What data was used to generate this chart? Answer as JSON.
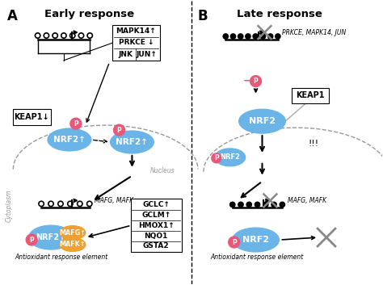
{
  "title_A": "Early response",
  "title_B": "Late response",
  "label_A": "A",
  "label_B": "B",
  "nrf2_color": "#6ab4e8",
  "mafg_color": "#f0a030",
  "mafk_color": "#f0a030",
  "p_color": "#e85878",
  "background": "#ffffff",
  "nucleus_label": "Nucleus",
  "cytoplasm_label": "Cytoplasm",
  "are_label_A": "Antioxidant response element",
  "are_label_B": "Antioxidant response element",
  "keap1_label_A": "KEAP1↓",
  "keap1_label_B": "KEAP1",
  "gene_label_A": "MAFG, MAFK",
  "gene_label_B": "MAFG, MAFK",
  "top_gene_label_B": "PRKCE, MAPK14, JUN",
  "box_mapk14": "MAPK14↑",
  "box_prkce": "PRKCE ↓",
  "box_jnk": "JNK",
  "box_jun": "JUN↑",
  "output_genes": [
    "GCLC↑",
    "GCLM↑",
    "HMOX1↑",
    "NQO1",
    "GSTA2"
  ]
}
